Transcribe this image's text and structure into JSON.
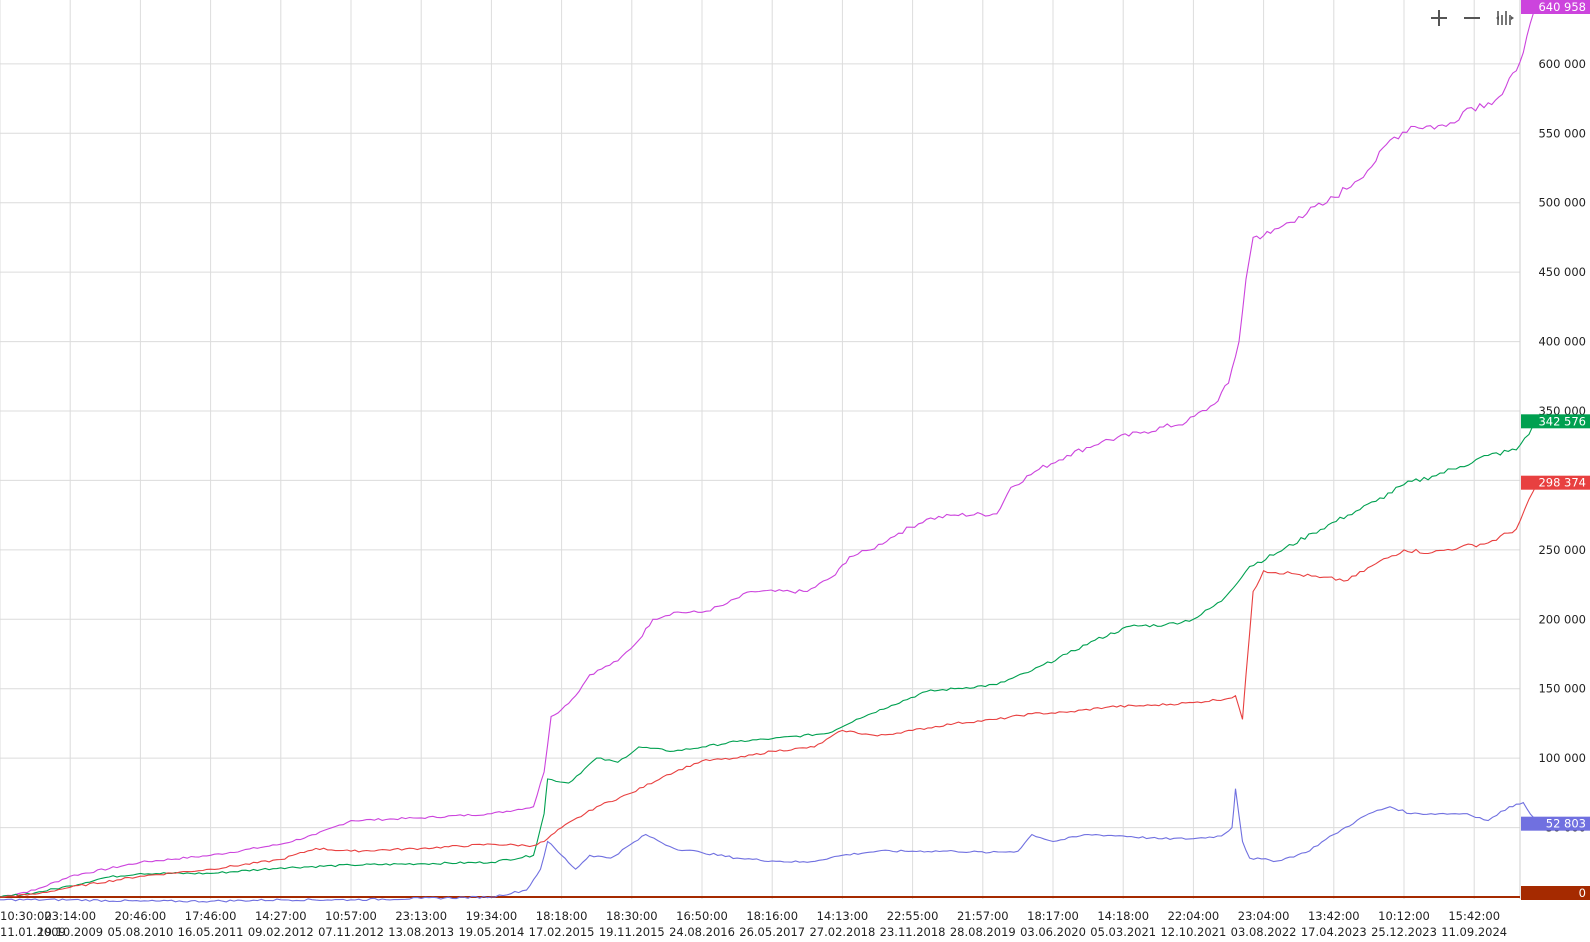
{
  "toolbar": {
    "zoom_in_icon": "plus-icon",
    "zoom_out_icon": "minus-icon",
    "reset_icon": "fit-icon"
  },
  "chart_data": {
    "type": "line",
    "title": "",
    "xlabel": "",
    "ylabel": "",
    "ylim": [
      -5000,
      650000
    ],
    "grid": true,
    "y_ticks": [
      {
        "value": 600000,
        "label": "600 000"
      },
      {
        "value": 550000,
        "label": "550 000"
      },
      {
        "value": 500000,
        "label": "500 000"
      },
      {
        "value": 450000,
        "label": "450 000"
      },
      {
        "value": 400000,
        "label": "400 000"
      },
      {
        "value": 350000,
        "label": "350 000"
      },
      {
        "value": 300000,
        "label": "300 000"
      },
      {
        "value": 250000,
        "label": "250 000"
      },
      {
        "value": 200000,
        "label": "200 000"
      },
      {
        "value": 150000,
        "label": "150 000"
      },
      {
        "value": 100000,
        "label": "100 000"
      },
      {
        "value": 50000,
        "label": "50 000"
      }
    ],
    "x_ticks": [
      {
        "time": "10:30:00",
        "date": "11.01.2009"
      },
      {
        "time": "23:14:00",
        "date": "19.10.2009"
      },
      {
        "time": "20:46:00",
        "date": "05.08.2010"
      },
      {
        "time": "17:46:00",
        "date": "16.05.2011"
      },
      {
        "time": "14:27:00",
        "date": "09.02.2012"
      },
      {
        "time": "10:57:00",
        "date": "07.11.2012"
      },
      {
        "time": "23:13:00",
        "date": "13.08.2013"
      },
      {
        "time": "19:34:00",
        "date": "19.05.2014"
      },
      {
        "time": "18:18:00",
        "date": "17.02.2015"
      },
      {
        "time": "18:30:00",
        "date": "19.11.2015"
      },
      {
        "time": "16:50:00",
        "date": "24.08.2016"
      },
      {
        "time": "18:16:00",
        "date": "26.05.2017"
      },
      {
        "time": "14:13:00",
        "date": "27.02.2018"
      },
      {
        "time": "22:55:00",
        "date": "23.11.2018"
      },
      {
        "time": "21:57:00",
        "date": "28.08.2019"
      },
      {
        "time": "18:17:00",
        "date": "03.06.2020"
      },
      {
        "time": "14:18:00",
        "date": "05.03.2021"
      },
      {
        "time": "22:04:00",
        "date": "12.10.2021"
      },
      {
        "time": "23:04:00",
        "date": "03.08.2022"
      },
      {
        "time": "13:42:00",
        "date": "17.04.2023"
      },
      {
        "time": "10:12:00",
        "date": "25.12.2023"
      },
      {
        "time": "15:42:00",
        "date": "11.09.2024"
      }
    ],
    "zero_line": {
      "value": 0,
      "label": "0",
      "color": "#a52a00"
    },
    "series": [
      {
        "color": "#cc44dd",
        "last_label": "640 958",
        "points": [
          [
            0,
            0
          ],
          [
            0.5,
            5000
          ],
          [
            1,
            15000
          ],
          [
            2,
            25000
          ],
          [
            3,
            30000
          ],
          [
            4,
            38000
          ],
          [
            4.5,
            45000
          ],
          [
            5,
            55000
          ],
          [
            6,
            57000
          ],
          [
            7,
            60000
          ],
          [
            7.6,
            65000
          ],
          [
            7.75,
            90000
          ],
          [
            7.85,
            130000
          ],
          [
            8,
            135000
          ],
          [
            8.2,
            145000
          ],
          [
            8.4,
            160000
          ],
          [
            8.8,
            170000
          ],
          [
            9.1,
            185000
          ],
          [
            9.3,
            200000
          ],
          [
            9.6,
            205000
          ],
          [
            10,
            205000
          ],
          [
            10.3,
            210000
          ],
          [
            10.7,
            220000
          ],
          [
            11.5,
            220000
          ],
          [
            11.9,
            232000
          ],
          [
            12.1,
            245000
          ],
          [
            12.4,
            250000
          ],
          [
            12.8,
            262000
          ],
          [
            13.2,
            272000
          ],
          [
            13.6,
            275000
          ],
          [
            14.2,
            276000
          ],
          [
            14.4,
            295000
          ],
          [
            14.8,
            308000
          ],
          [
            15.2,
            318000
          ],
          [
            15.7,
            328000
          ],
          [
            16.3,
            335000
          ],
          [
            16.9,
            342000
          ],
          [
            17.3,
            355000
          ],
          [
            17.5,
            370000
          ],
          [
            17.65,
            400000
          ],
          [
            17.75,
            445000
          ],
          [
            17.85,
            475000
          ],
          [
            18.1,
            478000
          ],
          [
            18.5,
            490000
          ],
          [
            18.9,
            500000
          ],
          [
            19.3,
            515000
          ],
          [
            19.6,
            530000
          ],
          [
            19.8,
            545000
          ],
          [
            20.1,
            555000
          ],
          [
            20.6,
            555000
          ],
          [
            20.9,
            568000
          ],
          [
            21.2,
            572000
          ],
          [
            21.4,
            578000
          ],
          [
            21.6,
            595000
          ],
          [
            21.75,
            620000
          ],
          [
            21.9,
            640958
          ]
        ]
      },
      {
        "color": "#00a050",
        "last_label": "342 576",
        "points": [
          [
            0,
            0
          ],
          [
            0.5,
            3000
          ],
          [
            1,
            8000
          ],
          [
            1.5,
            14000
          ],
          [
            2,
            17000
          ],
          [
            3,
            17000
          ],
          [
            4,
            21000
          ],
          [
            5,
            23000
          ],
          [
            6,
            24000
          ],
          [
            7,
            25000
          ],
          [
            7.6,
            30000
          ],
          [
            7.75,
            60000
          ],
          [
            7.8,
            85000
          ],
          [
            8.1,
            82000
          ],
          [
            8.5,
            100000
          ],
          [
            8.8,
            97000
          ],
          [
            9.1,
            108000
          ],
          [
            9.6,
            105000
          ],
          [
            10,
            108000
          ],
          [
            10.5,
            112000
          ],
          [
            11,
            114000
          ],
          [
            11.8,
            118000
          ],
          [
            12.2,
            128000
          ],
          [
            12.7,
            138000
          ],
          [
            13.2,
            148000
          ],
          [
            13.6,
            150000
          ],
          [
            14.2,
            153000
          ],
          [
            14.7,
            163000
          ],
          [
            15.2,
            175000
          ],
          [
            15.6,
            185000
          ],
          [
            16.1,
            195000
          ],
          [
            16.6,
            196000
          ],
          [
            17,
            200000
          ],
          [
            17.4,
            213000
          ],
          [
            17.8,
            238000
          ],
          [
            18.2,
            248000
          ],
          [
            18.7,
            262000
          ],
          [
            19.2,
            275000
          ],
          [
            19.6,
            285000
          ],
          [
            20,
            297000
          ],
          [
            20.4,
            303000
          ],
          [
            20.8,
            310000
          ],
          [
            21.2,
            318000
          ],
          [
            21.6,
            322000
          ],
          [
            21.9,
            342576
          ]
        ]
      },
      {
        "color": "#e84040",
        "last_label": "298 374",
        "points": [
          [
            0,
            0
          ],
          [
            0.5,
            2000
          ],
          [
            1,
            7000
          ],
          [
            2,
            15000
          ],
          [
            3,
            20000
          ],
          [
            4,
            27000
          ],
          [
            4.5,
            35000
          ],
          [
            5,
            33000
          ],
          [
            6,
            35000
          ],
          [
            7,
            38000
          ],
          [
            7.6,
            37000
          ],
          [
            7.75,
            40000
          ],
          [
            8,
            50000
          ],
          [
            8.5,
            65000
          ],
          [
            9,
            75000
          ],
          [
            9.5,
            88000
          ],
          [
            10,
            98000
          ],
          [
            10.5,
            100000
          ],
          [
            11,
            105000
          ],
          [
            11.6,
            108000
          ],
          [
            12,
            120000
          ],
          [
            12.5,
            116000
          ],
          [
            13,
            120000
          ],
          [
            13.6,
            125000
          ],
          [
            14.2,
            128000
          ],
          [
            14.7,
            132000
          ],
          [
            15.2,
            133000
          ],
          [
            15.8,
            137000
          ],
          [
            16.4,
            138000
          ],
          [
            17,
            140000
          ],
          [
            17.5,
            143000
          ],
          [
            17.6,
            145000
          ],
          [
            17.7,
            128000
          ],
          [
            17.75,
            160000
          ],
          [
            17.85,
            220000
          ],
          [
            18,
            235000
          ],
          [
            18.4,
            233000
          ],
          [
            18.8,
            230000
          ],
          [
            19.2,
            228000
          ],
          [
            19.6,
            240000
          ],
          [
            20,
            250000
          ],
          [
            20.4,
            248000
          ],
          [
            20.8,
            252000
          ],
          [
            21.2,
            255000
          ],
          [
            21.6,
            265000
          ],
          [
            21.9,
            298374
          ]
        ]
      },
      {
        "color": "#7070e0",
        "last_label": "52 803",
        "points": [
          [
            0,
            -2000
          ],
          [
            1,
            -2000
          ],
          [
            2,
            -3000
          ],
          [
            3,
            -3000
          ],
          [
            4,
            -2000
          ],
          [
            5,
            -2000
          ],
          [
            6,
            -1000
          ],
          [
            7,
            0
          ],
          [
            7.5,
            5000
          ],
          [
            7.7,
            20000
          ],
          [
            7.8,
            40000
          ],
          [
            8,
            30000
          ],
          [
            8.2,
            20000
          ],
          [
            8.4,
            30000
          ],
          [
            8.7,
            28000
          ],
          [
            9.2,
            45000
          ],
          [
            9.6,
            35000
          ],
          [
            10,
            32000
          ],
          [
            10.5,
            28000
          ],
          [
            11,
            26000
          ],
          [
            11.5,
            25000
          ],
          [
            12,
            30000
          ],
          [
            12.5,
            33000
          ],
          [
            13,
            33000
          ],
          [
            13.6,
            33000
          ],
          [
            14.1,
            32000
          ],
          [
            14.5,
            33000
          ],
          [
            14.7,
            45000
          ],
          [
            15,
            40000
          ],
          [
            15.5,
            45000
          ],
          [
            16,
            44000
          ],
          [
            16.5,
            42000
          ],
          [
            17,
            42000
          ],
          [
            17.4,
            44000
          ],
          [
            17.55,
            50000
          ],
          [
            17.6,
            78000
          ],
          [
            17.7,
            40000
          ],
          [
            17.8,
            28000
          ],
          [
            18.2,
            26000
          ],
          [
            18.6,
            32000
          ],
          [
            19,
            45000
          ],
          [
            19.5,
            60000
          ],
          [
            19.8,
            65000
          ],
          [
            20.1,
            60000
          ],
          [
            20.5,
            60000
          ],
          [
            20.9,
            60000
          ],
          [
            21.2,
            55000
          ],
          [
            21.5,
            65000
          ],
          [
            21.7,
            68000
          ],
          [
            21.9,
            52803
          ]
        ]
      }
    ]
  }
}
